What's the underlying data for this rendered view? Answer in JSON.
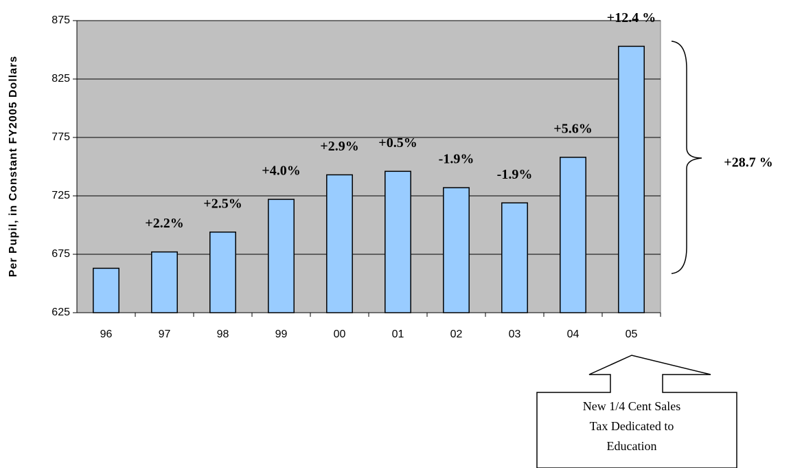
{
  "chart_data": {
    "type": "bar",
    "y_axis_label": "Per Pupil, in Constant FY2005 Dollars",
    "categories": [
      "96",
      "97",
      "98",
      "99",
      "00",
      "01",
      "02",
      "03",
      "04",
      "05"
    ],
    "values": [
      663,
      677,
      694,
      722,
      743,
      746,
      732,
      719,
      758,
      853
    ],
    "growth_labels": [
      null,
      "+2.2%",
      "+2.5%",
      "+4.0%",
      "+2.9%",
      "+0.5%",
      "-1.9%",
      "-1.9%",
      "+5.6%",
      "+12.4 %"
    ],
    "color": "#99ccff",
    "plot_background": "#c0c0c0",
    "ylim": [
      625,
      875
    ],
    "yticks": [
      625,
      675,
      725,
      775,
      825,
      875
    ],
    "grid": true,
    "total_growth": "+28.7 %",
    "callout": [
      "New 1/4 Cent Sales",
      "Tax Dedicated to",
      "Education"
    ]
  }
}
